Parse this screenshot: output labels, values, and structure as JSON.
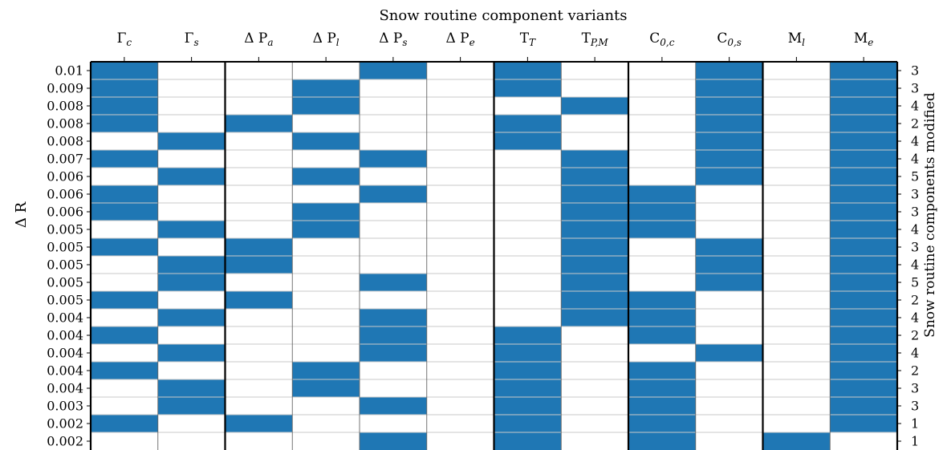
{
  "chart_data": {
    "type": "heatmap",
    "title": "Snow routine component variants",
    "ylabel": "Δ R",
    "ylabel_right": "Snow routine components modified",
    "fill_color": "#1f77b4",
    "columns": [
      {
        "base": "Γ",
        "sub": "c"
      },
      {
        "base": "Γ",
        "sub": "s"
      },
      {
        "base": "Δ P",
        "sub": "a"
      },
      {
        "base": "Δ P",
        "sub": "l"
      },
      {
        "base": "Δ P",
        "sub": "s"
      },
      {
        "base": "Δ P",
        "sub": "e"
      },
      {
        "base": "T",
        "sub": "T"
      },
      {
        "base": "T",
        "sub": "P,M"
      },
      {
        "base": "C",
        "sub": "0,c"
      },
      {
        "base": "C",
        "sub": "0,s"
      },
      {
        "base": "M",
        "sub": "l"
      },
      {
        "base": "M",
        "sub": "e"
      }
    ],
    "group_boundaries_after_column": [
      2,
      6,
      8,
      10
    ],
    "rows": [
      {
        "dr": "0.01",
        "count": "3",
        "cells": [
          1,
          0,
          0,
          0,
          1,
          0,
          1,
          0,
          0,
          1,
          0,
          1
        ]
      },
      {
        "dr": "0.009",
        "count": "3",
        "cells": [
          1,
          0,
          0,
          1,
          0,
          0,
          1,
          0,
          0,
          1,
          0,
          1
        ]
      },
      {
        "dr": "0.008",
        "count": "4",
        "cells": [
          1,
          0,
          0,
          1,
          0,
          0,
          0,
          1,
          0,
          1,
          0,
          1
        ]
      },
      {
        "dr": "0.008",
        "count": "2",
        "cells": [
          1,
          0,
          1,
          0,
          0,
          0,
          1,
          0,
          0,
          1,
          0,
          1
        ]
      },
      {
        "dr": "0.008",
        "count": "4",
        "cells": [
          0,
          1,
          0,
          1,
          0,
          0,
          1,
          0,
          0,
          1,
          0,
          1
        ]
      },
      {
        "dr": "0.007",
        "count": "4",
        "cells": [
          1,
          0,
          0,
          0,
          1,
          0,
          0,
          1,
          0,
          1,
          0,
          1
        ]
      },
      {
        "dr": "0.006",
        "count": "5",
        "cells": [
          0,
          1,
          0,
          1,
          0,
          0,
          0,
          1,
          0,
          1,
          0,
          1
        ]
      },
      {
        "dr": "0.006",
        "count": "3",
        "cells": [
          1,
          0,
          0,
          0,
          1,
          0,
          0,
          1,
          1,
          0,
          0,
          1
        ]
      },
      {
        "dr": "0.006",
        "count": "3",
        "cells": [
          1,
          0,
          0,
          1,
          0,
          0,
          0,
          1,
          1,
          0,
          0,
          1
        ]
      },
      {
        "dr": "0.005",
        "count": "4",
        "cells": [
          0,
          1,
          0,
          1,
          0,
          0,
          0,
          1,
          1,
          0,
          0,
          1
        ]
      },
      {
        "dr": "0.005",
        "count": "3",
        "cells": [
          1,
          0,
          1,
          0,
          0,
          0,
          0,
          1,
          0,
          1,
          0,
          1
        ]
      },
      {
        "dr": "0.005",
        "count": "4",
        "cells": [
          0,
          1,
          1,
          0,
          0,
          0,
          0,
          1,
          0,
          1,
          0,
          1
        ]
      },
      {
        "dr": "0.005",
        "count": "5",
        "cells": [
          0,
          1,
          0,
          0,
          1,
          0,
          0,
          1,
          0,
          1,
          0,
          1
        ]
      },
      {
        "dr": "0.005",
        "count": "2",
        "cells": [
          1,
          0,
          1,
          0,
          0,
          0,
          0,
          1,
          1,
          0,
          0,
          1
        ]
      },
      {
        "dr": "0.004",
        "count": "4",
        "cells": [
          0,
          1,
          0,
          0,
          1,
          0,
          0,
          1,
          1,
          0,
          0,
          1
        ]
      },
      {
        "dr": "0.004",
        "count": "2",
        "cells": [
          1,
          0,
          0,
          0,
          1,
          0,
          1,
          0,
          1,
          0,
          0,
          1
        ]
      },
      {
        "dr": "0.004",
        "count": "4",
        "cells": [
          0,
          1,
          0,
          0,
          1,
          0,
          1,
          0,
          0,
          1,
          0,
          1
        ]
      },
      {
        "dr": "0.004",
        "count": "2",
        "cells": [
          1,
          0,
          0,
          1,
          0,
          0,
          1,
          0,
          1,
          0,
          0,
          1
        ]
      },
      {
        "dr": "0.004",
        "count": "3",
        "cells": [
          0,
          1,
          0,
          1,
          0,
          0,
          1,
          0,
          1,
          0,
          0,
          1
        ]
      },
      {
        "dr": "0.003",
        "count": "3",
        "cells": [
          0,
          1,
          0,
          0,
          1,
          0,
          1,
          0,
          1,
          0,
          0,
          1
        ]
      },
      {
        "dr": "0.002",
        "count": "1",
        "cells": [
          1,
          0,
          1,
          0,
          0,
          0,
          1,
          0,
          1,
          0,
          0,
          1
        ]
      },
      {
        "dr": "0.002",
        "count": "1",
        "cells": [
          0,
          0,
          0,
          0,
          1,
          0,
          1,
          0,
          1,
          0,
          1,
          0
        ]
      }
    ]
  }
}
